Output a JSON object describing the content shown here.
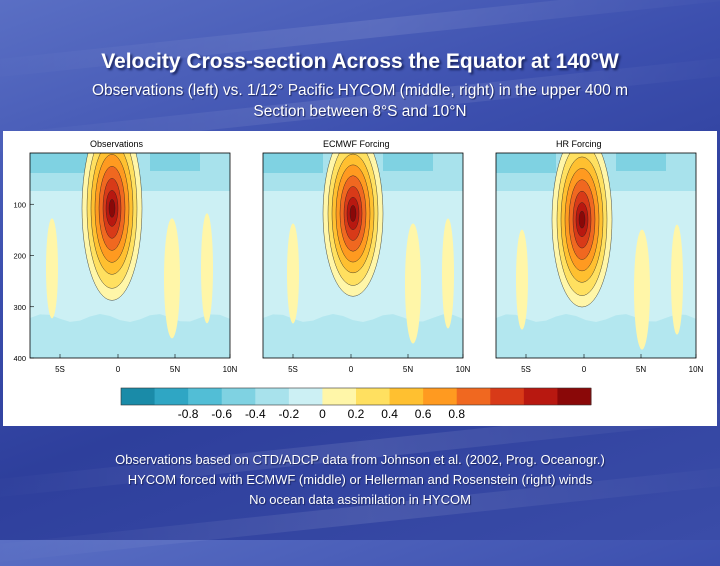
{
  "slide": {
    "title": "Velocity Cross-section Across the Equator at 140°W",
    "subtitle_line1": "Observations (left) vs. 1/12° Pacific HYCOM (middle, right) in the upper 400 m",
    "subtitle_line2": "Section between 8°S and 10°N",
    "caption_line1": "Observations based on CTD/ADCP data from Johnson et al. (2002, Prog. Oceanogr.)",
    "caption_line2": "HYCOM forced with ECMWF (middle) or Hellerman and Rosenstein (right) winds",
    "caption_line3": "No ocean data assimilation in HYCOM"
  },
  "panels": [
    {
      "title": "Observations",
      "x_ticks": [
        "5S",
        "0",
        "5N",
        "10N"
      ],
      "core_offset": -6,
      "core_depth": 108,
      "core_strength": 1.0
    },
    {
      "title": "ECMWF Forcing",
      "x_ticks": [
        "5S",
        "0",
        "5N",
        "10N"
      ],
      "core_offset": 2,
      "core_depth": 118,
      "core_strength": 0.9
    },
    {
      "title": "HR Forcing",
      "x_ticks": [
        "5S",
        "0",
        "5N",
        "10N"
      ],
      "core_offset": -2,
      "core_depth": 130,
      "core_strength": 0.95
    }
  ],
  "y_ticks": [
    "100",
    "200",
    "300",
    "400"
  ],
  "colorbar": {
    "tick_labels": [
      "-0.8",
      "-0.6",
      "-0.4",
      "-0.2",
      "0",
      "0.2",
      "0.4",
      "0.6",
      "0.8"
    ],
    "colors": [
      "#1a8ba8",
      "#2fa6c4",
      "#52bed6",
      "#7fd2e2",
      "#a8e2ec",
      "#ccf0f4",
      "#fff6a8",
      "#ffe060",
      "#ffc030",
      "#ff9a20",
      "#f06820",
      "#d83a18",
      "#b81810",
      "#8a0808"
    ]
  }
}
